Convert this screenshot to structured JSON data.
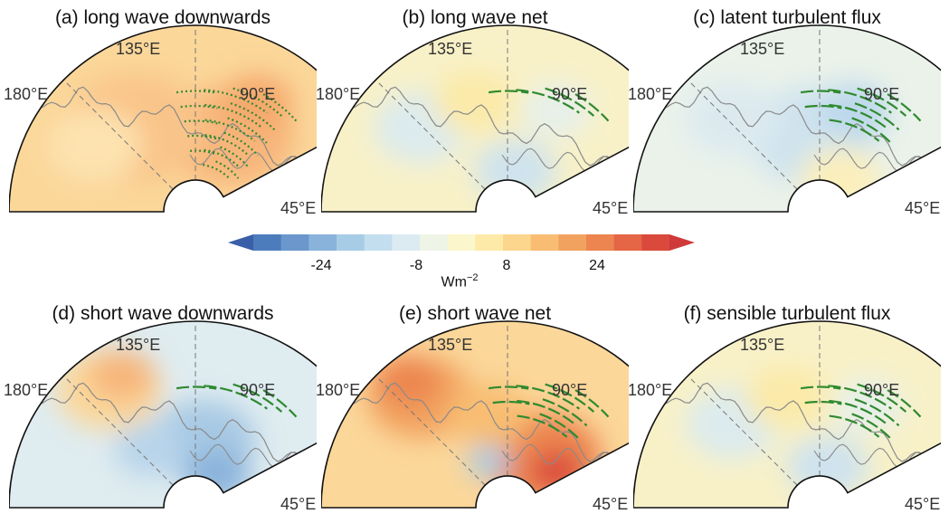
{
  "panels": [
    {
      "title": "(a) long wave downwards",
      "lon_labels": [
        "135°E",
        "180°E",
        "90°E",
        "45°E"
      ],
      "tone": "warm",
      "stipple": "dense"
    },
    {
      "title": "(b) long wave net",
      "lon_labels": [
        "135°E",
        "180°E",
        "90°E",
        "45°E"
      ],
      "tone": "neutral",
      "stipple": "sparse"
    },
    {
      "title": "(c) latent turbulent flux",
      "lon_labels": [
        "135°E",
        "180°E",
        "90°E",
        "45°E"
      ],
      "tone": "cool",
      "stipple": "medium"
    },
    {
      "title": "(d) short wave downwards",
      "lon_labels": [
        "135°E",
        "180°E",
        "90°E",
        "45°E"
      ],
      "tone": "cool-strong",
      "stipple": "few"
    },
    {
      "title": "(e) short wave net",
      "lon_labels": [
        "135°E",
        "180°E",
        "90°E",
        "45°E"
      ],
      "tone": "hot",
      "stipple": "medium"
    },
    {
      "title": "(f) sensible turbulent flux",
      "lon_labels": [
        "135°E",
        "180°E",
        "90°E",
        "45°E"
      ],
      "tone": "neutral",
      "stipple": "medium"
    }
  ],
  "colorbar": {
    "ticks": [
      "-24",
      "-8",
      "8",
      "24"
    ],
    "unit": "Wm",
    "unit_exp": "−2",
    "colors": [
      "#3a5fa8",
      "#4d7cbc",
      "#6b97cc",
      "#8ab3db",
      "#a7cce6",
      "#c3deee",
      "#dbebf1",
      "#eef4e6",
      "#fbf6cc",
      "#fdeaa8",
      "#fcd68c",
      "#f8bd72",
      "#f2a25f",
      "#ec8550",
      "#e46646",
      "#da4a3c",
      "#d0393a"
    ],
    "stipple_color": "#2f8a2f",
    "coast_color": "#8a8a8a"
  }
}
